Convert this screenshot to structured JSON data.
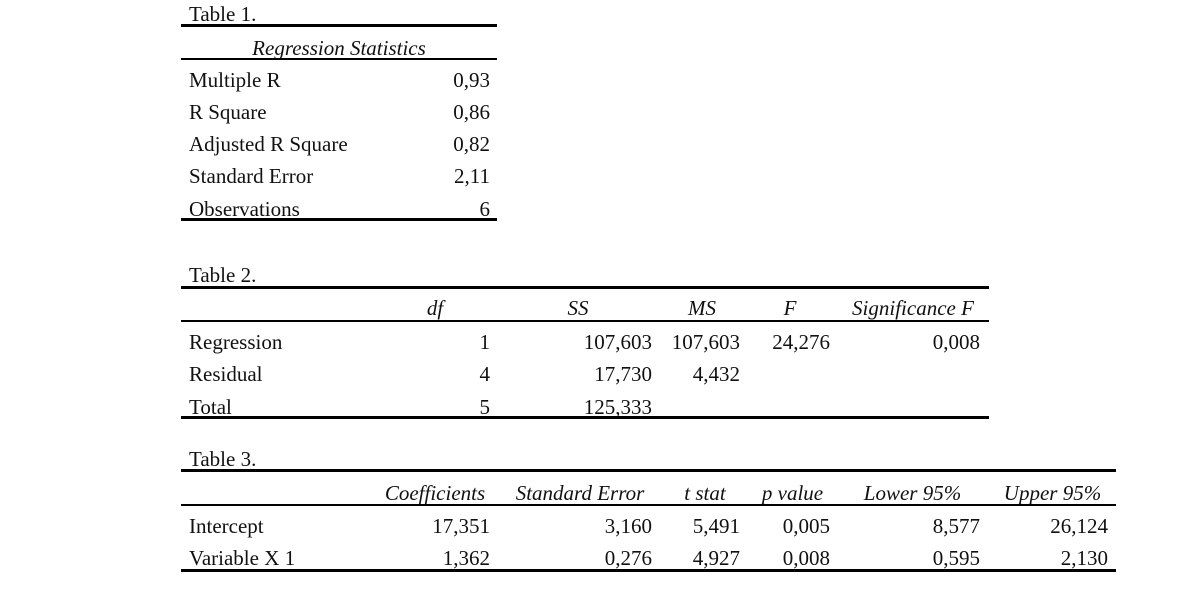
{
  "table1": {
    "caption": "Table 1.",
    "header": "Regression Statistics",
    "rows": [
      {
        "label": "Multiple R",
        "value": "0,93"
      },
      {
        "label": "R Square",
        "value": "0,86"
      },
      {
        "label": "Adjusted R Square",
        "value": "0,82"
      },
      {
        "label": "Standard Error",
        "value": "2,11"
      },
      {
        "label": "Observations",
        "value": "6"
      }
    ]
  },
  "table2": {
    "caption": "Table 2.",
    "headers": {
      "df": "df",
      "ss": "SS",
      "ms": "MS",
      "f": "F",
      "sigf": "Significance F"
    },
    "rows": [
      {
        "label": "Regression",
        "df": "1",
        "ss": "107,603",
        "ms": "107,603",
        "f": "24,276",
        "sigf": "0,008"
      },
      {
        "label": "Residual",
        "df": "4",
        "ss": "17,730",
        "ms": "4,432",
        "f": "",
        "sigf": ""
      },
      {
        "label": "Total",
        "df": "5",
        "ss": "125,333",
        "ms": "",
        "f": "",
        "sigf": ""
      }
    ]
  },
  "table3": {
    "caption": "Table 3.",
    "headers": {
      "coef": "Coefficients",
      "se": "Standard Error",
      "t": "t stat",
      "p": "p value",
      "lower": "Lower 95%",
      "upper": "Upper 95%"
    },
    "rows": [
      {
        "label": "Intercept",
        "coef": "17,351",
        "se": "3,160",
        "t": "5,491",
        "p": "0,005",
        "lower": "8,577",
        "upper": "26,124"
      },
      {
        "label": "Variable X 1",
        "coef": "1,362",
        "se": "0,276",
        "t": "4,927",
        "p": "0,008",
        "lower": "0,595",
        "upper": "2,130"
      }
    ]
  }
}
